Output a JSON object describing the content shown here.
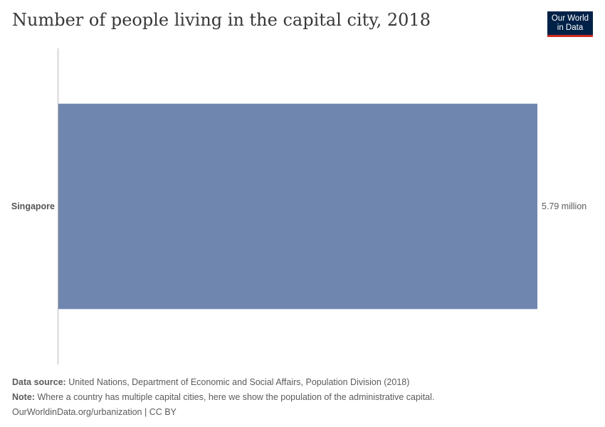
{
  "header": {
    "title": "Number of people living in the capital city, 2018",
    "logo_line1": "Our World",
    "logo_line2": "in Data"
  },
  "footer": {
    "source_label": "Data source:",
    "source_text": "United Nations, Department of Economic and Social Affairs, Population Division (2018)",
    "note_label": "Note:",
    "note_text": "Where a country has multiple capital cities, here we show the population of the administrative capital.",
    "link_text": "OurWorldinData.org/urbanization | CC BY"
  },
  "colors": {
    "bar": "#6f87ae",
    "axis": "#bbbbbb",
    "logo_bg": "#002147",
    "logo_accent": "#ce261e"
  },
  "chart_data": {
    "type": "bar",
    "orientation": "horizontal",
    "title": "Number of people living in the capital city, 2018",
    "categories": [
      "Singapore"
    ],
    "values": [
      5790000
    ],
    "value_labels": [
      "5.79 million"
    ],
    "unit": "people",
    "xlim": [
      0,
      5790000
    ],
    "grid": false
  }
}
